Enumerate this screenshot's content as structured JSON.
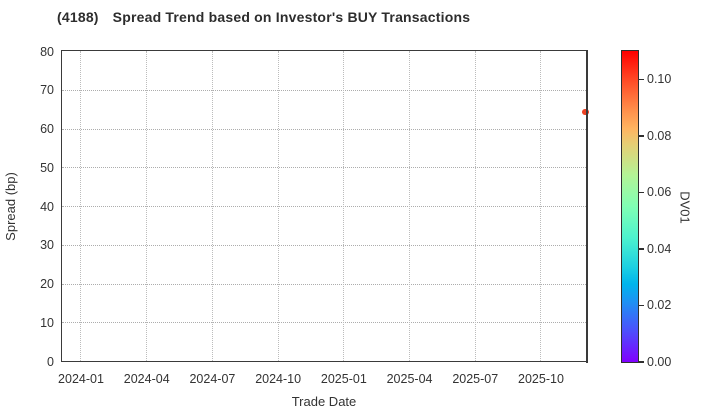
{
  "header": {
    "ticker": "(4188)",
    "title": "Spread Trend based on Investor's BUY Transactions"
  },
  "chart_data": {
    "type": "scatter",
    "title": "(4188) Spread Trend based on Investor's BUY Transactions",
    "xlabel": "Trade Date",
    "ylabel": "Spread (bp)",
    "x_tick_labels": [
      "2024-01",
      "2024-04",
      "2024-07",
      "2024-10",
      "2025-01",
      "2025-04",
      "2025-07",
      "2025-10"
    ],
    "y_ticks": [
      0,
      10,
      20,
      30,
      40,
      50,
      60,
      70,
      80
    ],
    "ylim": [
      0,
      80
    ],
    "grid": "dotted",
    "legend": "none",
    "points": [
      {
        "trade_date": "2025-12",
        "spread_bp": 64.3,
        "dv01": 0.1,
        "color": "#ee4123"
      }
    ],
    "colorbar": {
      "label": "DV01",
      "tick_labels": [
        "0.00",
        "0.02",
        "0.04",
        "0.06",
        "0.08",
        "0.10"
      ],
      "tick_values": [
        0,
        0.02,
        0.04,
        0.06,
        0.08,
        0.1
      ],
      "vmin": 0.0,
      "vmax": 0.11,
      "colormap": "rainbow",
      "gradient_stops": [
        {
          "pos": 0.0,
          "color": "#8000ff"
        },
        {
          "pos": 0.1,
          "color": "#4d4ffc"
        },
        {
          "pos": 0.2,
          "color": "#1a96f3"
        },
        {
          "pos": 0.25,
          "color": "#00b4ec"
        },
        {
          "pos": 0.3,
          "color": "#1acee3"
        },
        {
          "pos": 0.4,
          "color": "#4df3ce"
        },
        {
          "pos": 0.5,
          "color": "#80ffb4"
        },
        {
          "pos": 0.6,
          "color": "#b3f396"
        },
        {
          "pos": 0.7,
          "color": "#e6ce74"
        },
        {
          "pos": 0.75,
          "color": "#ffb461"
        },
        {
          "pos": 0.8,
          "color": "#ff964f"
        },
        {
          "pos": 0.9,
          "color": "#ff4f28"
        },
        {
          "pos": 1.0,
          "color": "#ff0000"
        }
      ]
    },
    "layout": {
      "x_first_tick_frac": 0.0353,
      "x_tick_spacing_frac": 0.1254,
      "point_x_frac": 0.999,
      "colors": {
        "spine": "#3a3a3a",
        "grid": "#b0b0b0",
        "text": "#333333",
        "title": "#2d2d2d"
      }
    }
  }
}
